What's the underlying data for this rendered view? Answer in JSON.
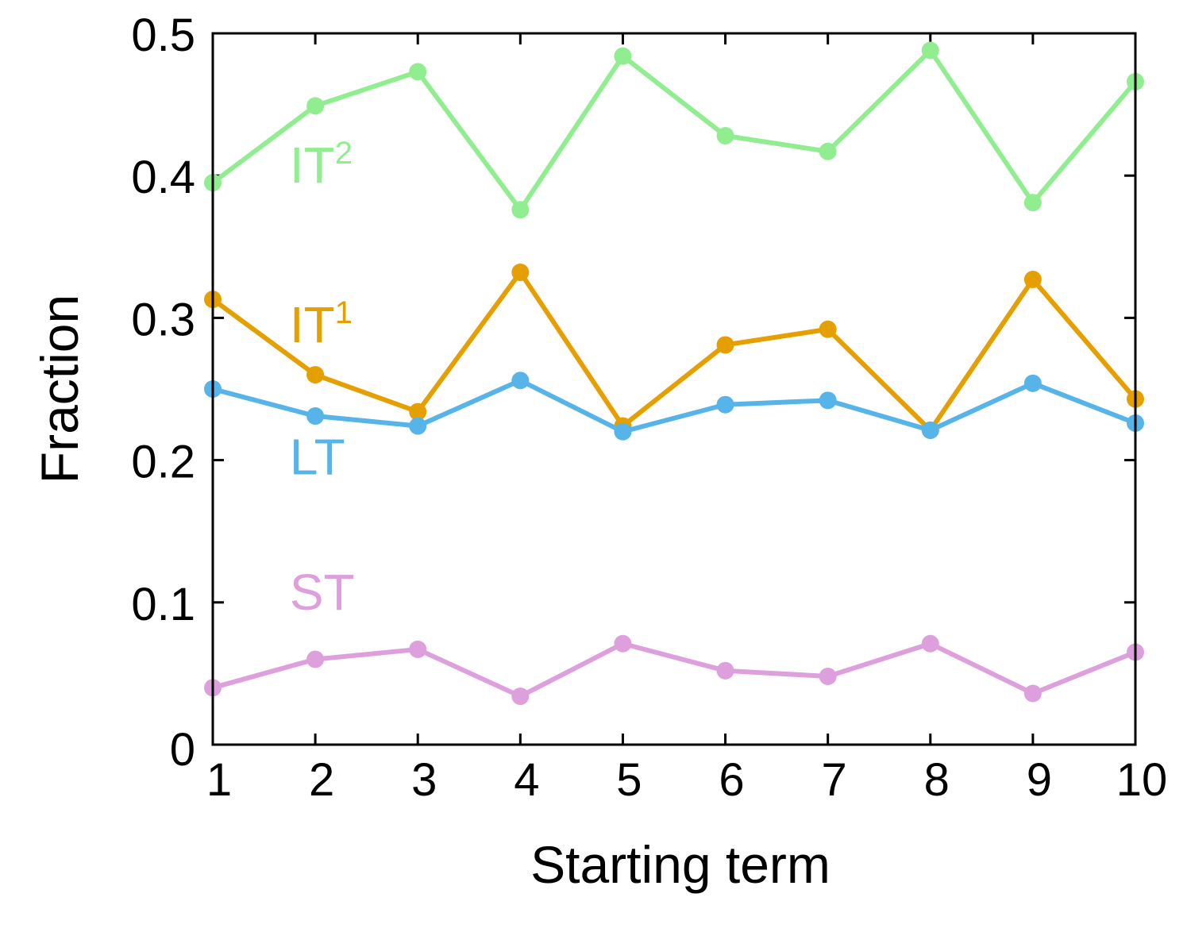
{
  "chart_data": {
    "type": "line",
    "xlabel": "Starting term",
    "ylabel": "Fraction",
    "x": [
      1,
      2,
      3,
      4,
      5,
      6,
      7,
      8,
      9,
      10
    ],
    "xlim": [
      1,
      10
    ],
    "ylim": [
      0,
      0.5
    ],
    "xticks": [
      "1",
      "2",
      "3",
      "4",
      "5",
      "6",
      "7",
      "8",
      "9",
      "10"
    ],
    "yticks": [
      {
        "value": 0,
        "label": "0"
      },
      {
        "value": 0.1,
        "label": "0.1"
      },
      {
        "value": 0.2,
        "label": "0.2"
      },
      {
        "value": 0.3,
        "label": "0.3"
      },
      {
        "value": 0.4,
        "label": "0.4"
      },
      {
        "value": 0.5,
        "label": "0.5"
      }
    ],
    "grid": false,
    "series": [
      {
        "key": "it2",
        "name": "IT",
        "sup": "2",
        "color": "#90EE90",
        "label_at": {
          "x": 1.75,
          "y": 0.395
        },
        "values": [
          0.395,
          0.449,
          0.473,
          0.376,
          0.484,
          0.428,
          0.417,
          0.488,
          0.381,
          0.466
        ]
      },
      {
        "key": "it1",
        "name": "IT",
        "sup": "1",
        "color": "#E69F00",
        "label_at": {
          "x": 1.75,
          "y": 0.283
        },
        "values": [
          0.313,
          0.26,
          0.234,
          0.332,
          0.224,
          0.281,
          0.292,
          0.221,
          0.327,
          0.243
        ]
      },
      {
        "key": "lt",
        "name": "LT",
        "sup": "",
        "color": "#56B4E9",
        "label_at": {
          "x": 1.75,
          "y": 0.19
        },
        "values": [
          0.25,
          0.231,
          0.224,
          0.256,
          0.22,
          0.239,
          0.242,
          0.221,
          0.254,
          0.226
        ]
      },
      {
        "key": "st",
        "name": "ST",
        "sup": "",
        "color": "#DDA0DD",
        "label_at": {
          "x": 1.75,
          "y": 0.095
        },
        "values": [
          0.04,
          0.06,
          0.067,
          0.034,
          0.071,
          0.052,
          0.048,
          0.071,
          0.036,
          0.065
        ]
      }
    ]
  }
}
